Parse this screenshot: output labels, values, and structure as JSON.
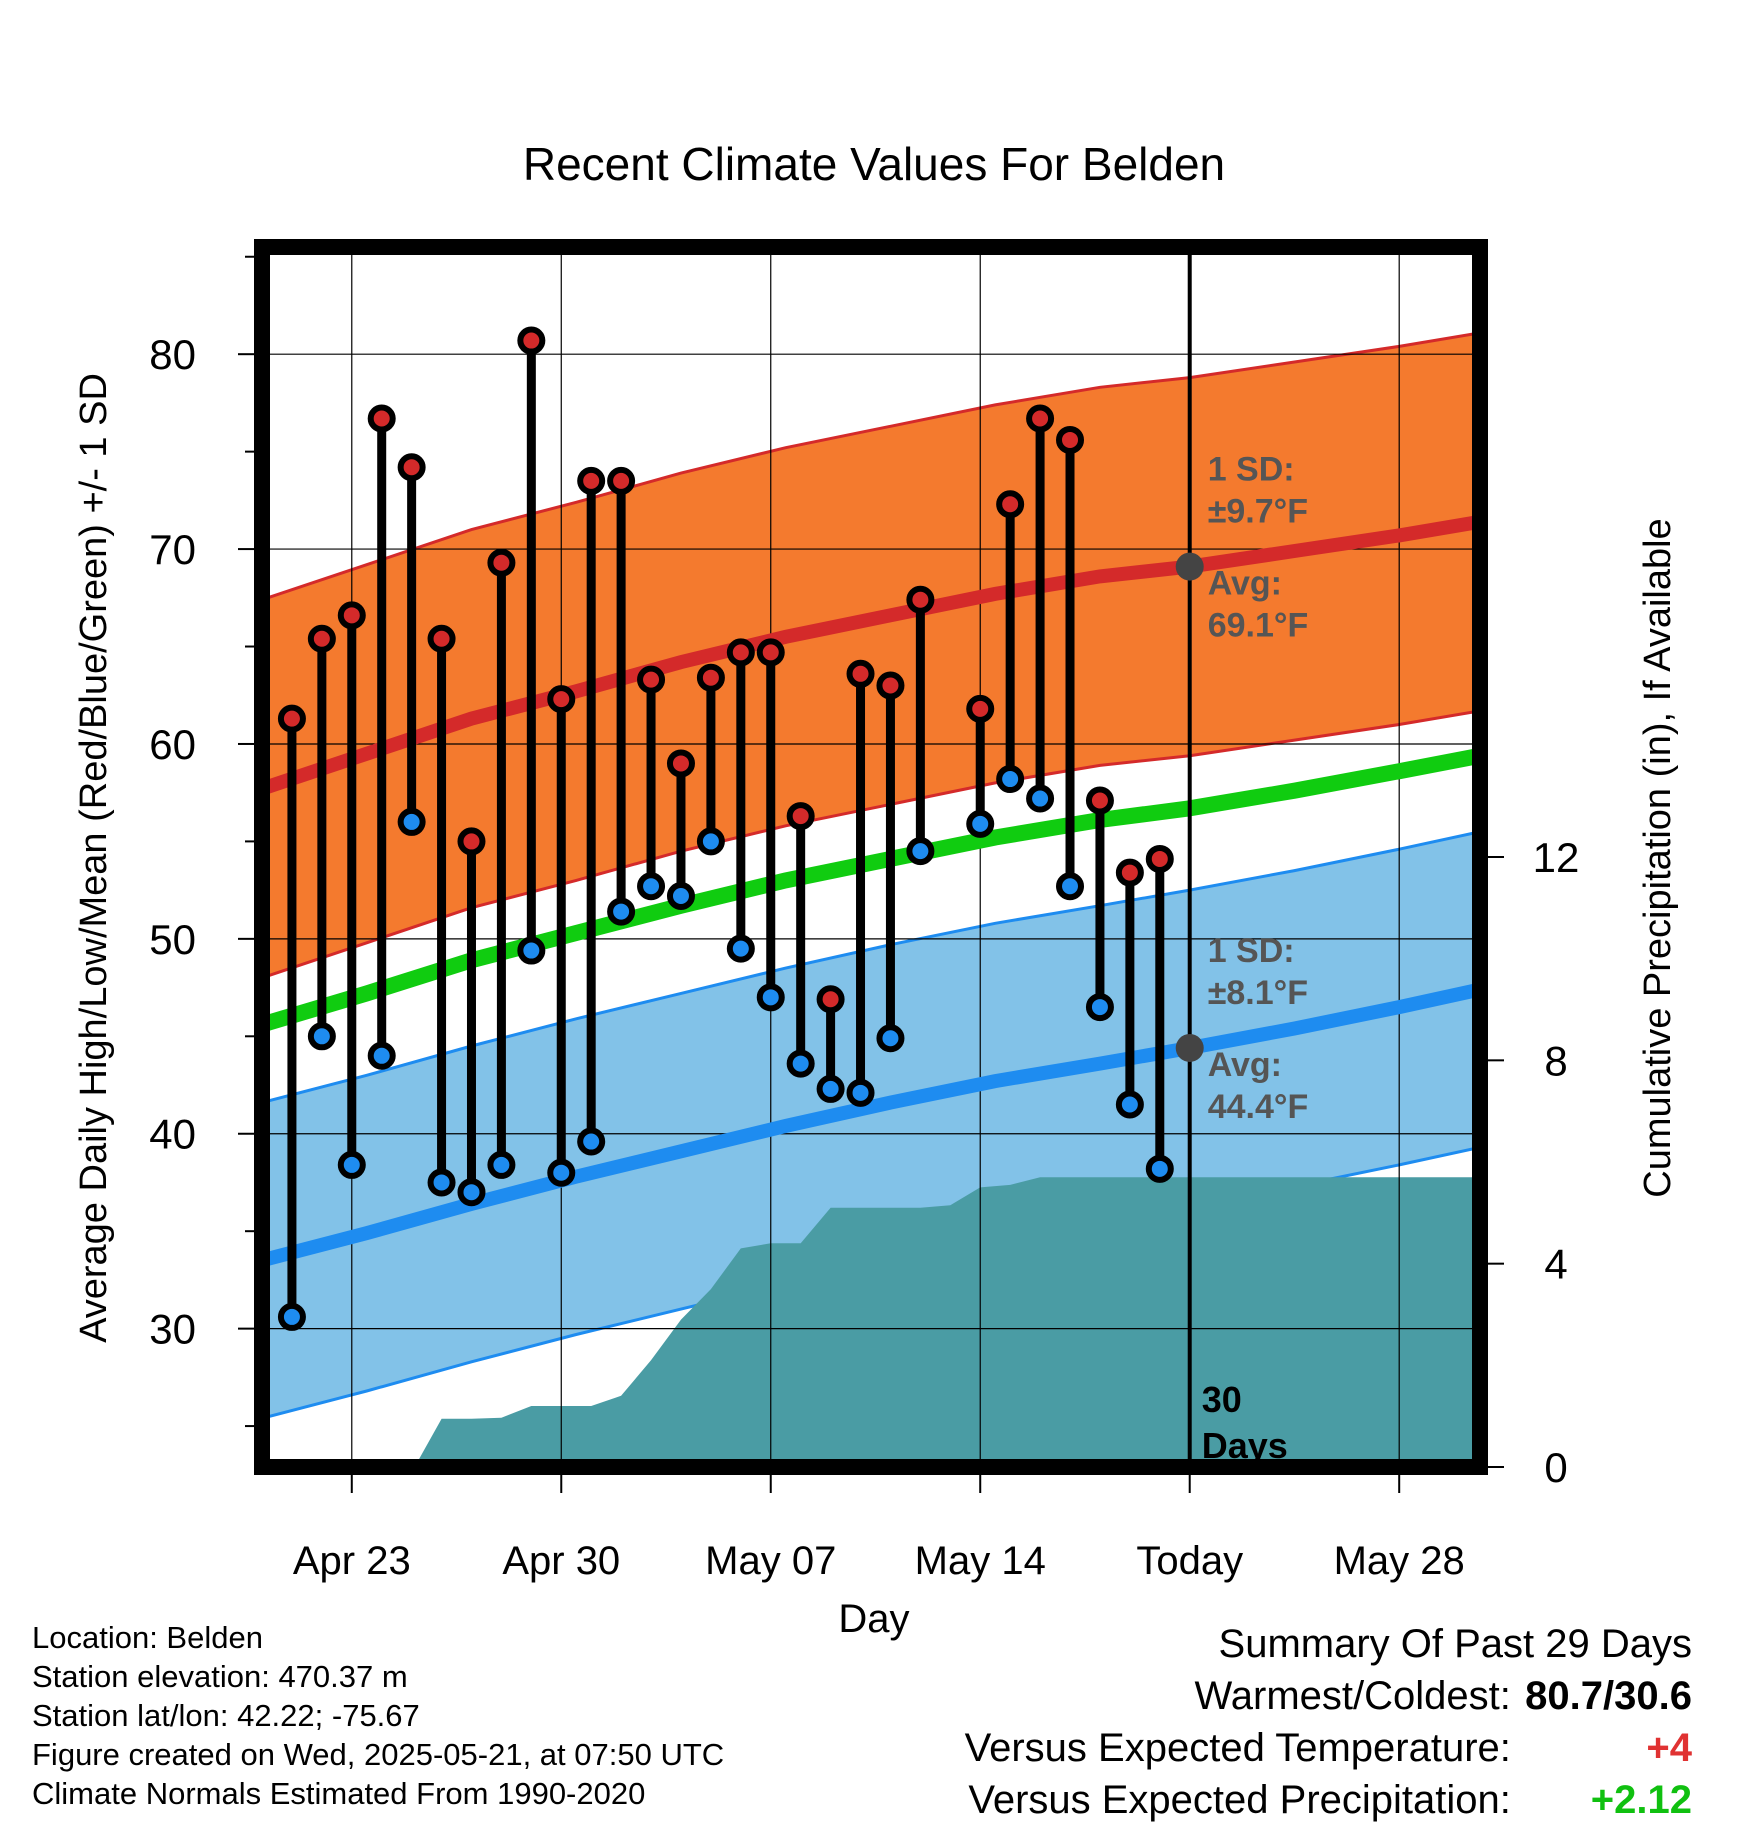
{
  "chart_data": {
    "type": "line",
    "title": "Recent Climate Values For Belden",
    "xlabel": "Day",
    "ylabel": "Average Daily High/Low/Mean (Red/Blue/Green) +/- 1 SD",
    "y2label": "Cumulative Precipitation (in), If Available",
    "x_tick_labels": [
      "Apr 23",
      "Apr 30",
      "May 07",
      "May 14",
      "Today",
      "May 28"
    ],
    "y_ticks": [
      30,
      40,
      50,
      60,
      70,
      80
    ],
    "y2_ticks": [
      0,
      4,
      8,
      12
    ],
    "ylim": [
      22.9,
      85.5
    ],
    "y2lim": [
      0,
      24
    ],
    "xlim_days_from_today": [
      -31,
      9.7
    ],
    "grid": true,
    "colors": {
      "high": "#d42a2a",
      "high_band": "#f47a2e",
      "low": "#1e8cf0",
      "low_band": "#82c2e8",
      "mean": "#10cc10",
      "precip": "#4a9ca4",
      "marker_high": "#d42a2a",
      "marker_low": "#1e8cf0",
      "avg_dot": "#444444"
    },
    "normals": {
      "days_from_today": [
        -31,
        -27.5,
        -24,
        -20.5,
        -17,
        -13.5,
        -10,
        -6.5,
        -3,
        0,
        3.5,
        7,
        9.7
      ],
      "high_avg": [
        57.7,
        59.5,
        61.3,
        62.7,
        64.2,
        65.5,
        66.6,
        67.7,
        68.6,
        69.1,
        69.9,
        70.7,
        71.4
      ],
      "high_sd": 9.7,
      "low_avg": [
        33.5,
        34.9,
        36.4,
        37.8,
        39.1,
        40.4,
        41.6,
        42.7,
        43.6,
        44.4,
        45.4,
        46.5,
        47.4
      ],
      "low_sd": 8.1,
      "mean": [
        45.6,
        47.2,
        48.9,
        50.3,
        51.7,
        53.0,
        54.1,
        55.2,
        56.1,
        56.7,
        57.6,
        58.6,
        59.4
      ]
    },
    "series": [
      {
        "name": "High",
        "days_from_today": [
          -30,
          -29,
          -28,
          -27,
          -26,
          -25,
          -24,
          -23,
          -22,
          -21,
          -20,
          -19,
          -18,
          -17,
          -16,
          -15,
          -14,
          -13,
          -12,
          -11,
          -10,
          -9,
          -7,
          -6,
          -5,
          -4,
          -3,
          -2,
          -1
        ],
        "values": [
          61.3,
          65.4,
          66.6,
          76.7,
          74.2,
          65.4,
          55.0,
          69.3,
          80.7,
          62.3,
          73.5,
          73.5,
          63.3,
          59.0,
          63.4,
          64.7,
          64.7,
          56.3,
          46.9,
          63.6,
          63.0,
          67.4,
          61.8,
          72.3,
          76.7,
          75.6,
          57.1,
          53.4,
          54.1
        ]
      },
      {
        "name": "Low",
        "days_from_today": [
          -30,
          -29,
          -28,
          -27,
          -26,
          -25,
          -24,
          -23,
          -22,
          -21,
          -20,
          -19,
          -18,
          -17,
          -16,
          -15,
          -14,
          -13,
          -12,
          -11,
          -10,
          -9,
          -7,
          -6,
          -5,
          -4,
          -3,
          -2,
          -1
        ],
        "values": [
          30.6,
          45.0,
          38.4,
          44.0,
          56.0,
          37.5,
          37.0,
          38.4,
          49.4,
          38.0,
          39.6,
          51.4,
          52.7,
          52.2,
          55.0,
          49.5,
          47.0,
          43.6,
          42.3,
          42.1,
          44.9,
          54.5,
          55.9,
          58.2,
          57.2,
          52.7,
          46.5,
          41.5,
          38.2
        ]
      },
      {
        "name": "Cumulative Precipitation",
        "axis": "right",
        "days_from_today": [
          -25.9,
          -25.0,
          -24.0,
          -23.0,
          -22.0,
          -21.0,
          -20.0,
          -19.0,
          -18.0,
          -17.0,
          -16.0,
          -15.0,
          -14.0,
          -13.0,
          -12.0,
          -11.0,
          -10.0,
          -9.0,
          -8.0,
          -7.0,
          -6.0,
          -5.0,
          -4.0,
          -3.0,
          -2.0,
          -1.0,
          0,
          9.7
        ],
        "values": [
          0,
          0.95,
          0.95,
          0.97,
          1.2,
          1.2,
          1.2,
          1.4,
          2.1,
          2.9,
          3.5,
          4.3,
          4.4,
          4.4,
          5.1,
          5.1,
          5.1,
          5.1,
          5.15,
          5.5,
          5.55,
          5.7,
          5.7,
          5.7,
          5.7,
          5.7,
          5.7,
          5.7
        ]
      }
    ],
    "annotations": {
      "high_sd_label": "1 SD:",
      "high_sd_value": "±9.7°F",
      "high_avg_label": "Avg:",
      "high_avg_value": "69.1°F",
      "low_sd_label": "1 SD:",
      "low_sd_value": "±8.1°F",
      "low_avg_label": "Avg:",
      "low_avg_value": "44.4°F",
      "today_label_1": "30",
      "today_label_2": "Days"
    }
  },
  "footer": {
    "location": "Location: Belden",
    "elevation": "Station elevation: 470.37 m",
    "latlon": "Station lat/lon: 42.22; -75.67",
    "created": "Figure created on Wed, 2025-05-21, at 07:50 UTC",
    "normals": "Climate Normals Estimated From 1990-2020"
  },
  "summary": {
    "title": "Summary Of Past 29 Days",
    "warmest_coldest_label": "Warmest/Coldest:",
    "warmest_coldest_value": "80.7/30.6",
    "temp_label": "Versus Expected Temperature:",
    "temp_value": "+4",
    "precip_label": "Versus Expected Precipitation:",
    "precip_value": "+2.12"
  }
}
